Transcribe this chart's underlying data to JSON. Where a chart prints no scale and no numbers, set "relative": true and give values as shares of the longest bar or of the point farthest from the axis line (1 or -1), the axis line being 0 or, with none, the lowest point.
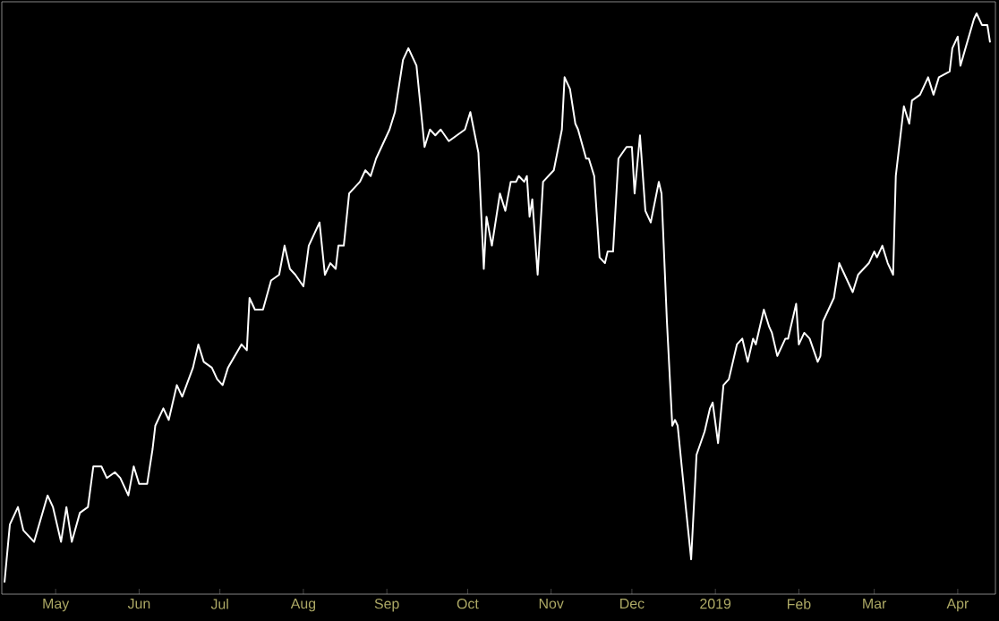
{
  "chart_data": {
    "type": "line",
    "relative": true,
    "xlim": [
      "2018-04-11",
      "2019-04-15"
    ],
    "xticks": [
      {
        "value": "2018-05-01",
        "label": "May"
      },
      {
        "value": "2018-06-01",
        "label": "Jun"
      },
      {
        "value": "2018-07-01",
        "label": "Jul"
      },
      {
        "value": "2018-08-01",
        "label": "Aug"
      },
      {
        "value": "2018-09-01",
        "label": "Sep"
      },
      {
        "value": "2018-10-01",
        "label": "Oct"
      },
      {
        "value": "2018-11-01",
        "label": "Nov"
      },
      {
        "value": "2018-12-01",
        "label": "Dec"
      },
      {
        "value": "2019-01-01",
        "label": "2019"
      },
      {
        "value": "2019-02-01",
        "label": "Feb"
      },
      {
        "value": "2019-03-01",
        "label": "Mar"
      },
      {
        "value": "2019-04-01",
        "label": "Apr"
      }
    ],
    "x": [
      "2018-04-12",
      "2018-04-14",
      "2018-04-17",
      "2018-04-19",
      "2018-04-23",
      "2018-04-28",
      "2018-04-30",
      "2018-05-03",
      "2018-05-05",
      "2018-05-07",
      "2018-05-10",
      "2018-05-13",
      "2018-05-15",
      "2018-05-18",
      "2018-05-20",
      "2018-05-23",
      "2018-05-25",
      "2018-05-28",
      "2018-05-30",
      "2018-06-01",
      "2018-06-04",
      "2018-06-06",
      "2018-06-07",
      "2018-06-10",
      "2018-06-12",
      "2018-06-15",
      "2018-06-17",
      "2018-06-21",
      "2018-06-23",
      "2018-06-25",
      "2018-06-28",
      "2018-06-30",
      "2018-07-02",
      "2018-07-04",
      "2018-07-09",
      "2018-07-11",
      "2018-07-12",
      "2018-07-14",
      "2018-07-17",
      "2018-07-20",
      "2018-07-23",
      "2018-07-25",
      "2018-07-27",
      "2018-07-29",
      "2018-08-01",
      "2018-08-03",
      "2018-08-07",
      "2018-08-09",
      "2018-08-11",
      "2018-08-13",
      "2018-08-14",
      "2018-08-16",
      "2018-08-18",
      "2018-08-22",
      "2018-08-24",
      "2018-08-26",
      "2018-08-28",
      "2018-08-31",
      "2018-09-02",
      "2018-09-04",
      "2018-09-07",
      "2018-09-09",
      "2018-09-12",
      "2018-09-15",
      "2018-09-17",
      "2018-09-19",
      "2018-09-21",
      "2018-09-24",
      "2018-09-27",
      "2018-09-30",
      "2018-10-02",
      "2018-10-05",
      "2018-10-07",
      "2018-10-08",
      "2018-10-10",
      "2018-10-13",
      "2018-10-15",
      "2018-10-17",
      "2018-10-19",
      "2018-10-20",
      "2018-10-22",
      "2018-10-23",
      "2018-10-24",
      "2018-10-25",
      "2018-10-27",
      "2018-10-29",
      "2018-11-02",
      "2018-11-05",
      "2018-11-06",
      "2018-11-08",
      "2018-11-10",
      "2018-11-11",
      "2018-11-14",
      "2018-11-15",
      "2018-11-17",
      "2018-11-19",
      "2018-11-21",
      "2018-11-22",
      "2018-11-24",
      "2018-11-26",
      "2018-11-29",
      "2018-12-01",
      "2018-12-02",
      "2018-12-04",
      "2018-12-06",
      "2018-12-08",
      "2018-12-11",
      "2018-12-12",
      "2018-12-14",
      "2018-12-16",
      "2018-12-17",
      "2018-12-18",
      "2018-12-21",
      "2018-12-23",
      "2018-12-25",
      "2018-12-28",
      "2018-12-30",
      "2018-12-31",
      "2019-01-02",
      "2019-01-04",
      "2019-01-06",
      "2019-01-09",
      "2019-01-11",
      "2019-01-13",
      "2019-01-15",
      "2019-01-16",
      "2019-01-19",
      "2019-01-21",
      "2019-01-22",
      "2019-01-24",
      "2019-01-27",
      "2019-01-28",
      "2019-01-31",
      "2019-02-01",
      "2019-02-03",
      "2019-02-05",
      "2019-02-08",
      "2019-02-09",
      "2019-02-10",
      "2019-02-14",
      "2019-02-16",
      "2019-02-18",
      "2019-02-21",
      "2019-02-23",
      "2019-02-27",
      "2019-03-01",
      "2019-03-02",
      "2019-03-04",
      "2019-03-06",
      "2019-03-08",
      "2019-03-09",
      "2019-03-12",
      "2019-03-14",
      "2019-03-15",
      "2019-03-18",
      "2019-03-21",
      "2019-03-23",
      "2019-03-25",
      "2019-03-29",
      "2019-03-30",
      "2019-04-01",
      "2019-04-02",
      "2019-04-07",
      "2019-04-08",
      "2019-04-10",
      "2019-04-12",
      "2019-04-13"
    ],
    "series": [
      {
        "color": "#ffffff",
        "values": [
          0.02,
          0.12,
          0.15,
          0.11,
          0.09,
          0.17,
          0.15,
          0.09,
          0.15,
          0.09,
          0.14,
          0.15,
          0.22,
          0.22,
          0.2,
          0.21,
          0.2,
          0.17,
          0.22,
          0.19,
          0.19,
          0.25,
          0.29,
          0.32,
          0.3,
          0.36,
          0.34,
          0.39,
          0.43,
          0.4,
          0.39,
          0.37,
          0.36,
          0.39,
          0.43,
          0.42,
          0.51,
          0.49,
          0.49,
          0.54,
          0.55,
          0.6,
          0.56,
          0.55,
          0.53,
          0.6,
          0.64,
          0.55,
          0.57,
          0.56,
          0.6,
          0.6,
          0.69,
          0.71,
          0.73,
          0.72,
          0.75,
          0.78,
          0.8,
          0.83,
          0.92,
          0.94,
          0.91,
          0.77,
          0.8,
          0.79,
          0.8,
          0.78,
          0.79,
          0.8,
          0.83,
          0.76,
          0.56,
          0.65,
          0.6,
          0.69,
          0.66,
          0.71,
          0.71,
          0.72,
          0.71,
          0.72,
          0.65,
          0.68,
          0.55,
          0.71,
          0.73,
          0.8,
          0.89,
          0.87,
          0.81,
          0.8,
          0.75,
          0.75,
          0.72,
          0.58,
          0.57,
          0.59,
          0.59,
          0.75,
          0.77,
          0.77,
          0.69,
          0.79,
          0.66,
          0.64,
          0.71,
          0.69,
          0.47,
          0.29,
          0.3,
          0.29,
          0.15,
          0.06,
          0.24,
          0.28,
          0.32,
          0.33,
          0.26,
          0.36,
          0.37,
          0.43,
          0.44,
          0.4,
          0.44,
          0.43,
          0.49,
          0.46,
          0.45,
          0.41,
          0.44,
          0.44,
          0.5,
          0.43,
          0.45,
          0.44,
          0.4,
          0.41,
          0.47,
          0.51,
          0.57,
          0.55,
          0.52,
          0.55,
          0.57,
          0.59,
          0.58,
          0.6,
          0.57,
          0.55,
          0.72,
          0.84,
          0.81,
          0.85,
          0.86,
          0.89,
          0.86,
          0.89,
          0.9,
          0.94,
          0.96,
          0.91,
          0.99,
          1.0,
          0.98,
          0.98,
          0.95
        ]
      }
    ]
  }
}
